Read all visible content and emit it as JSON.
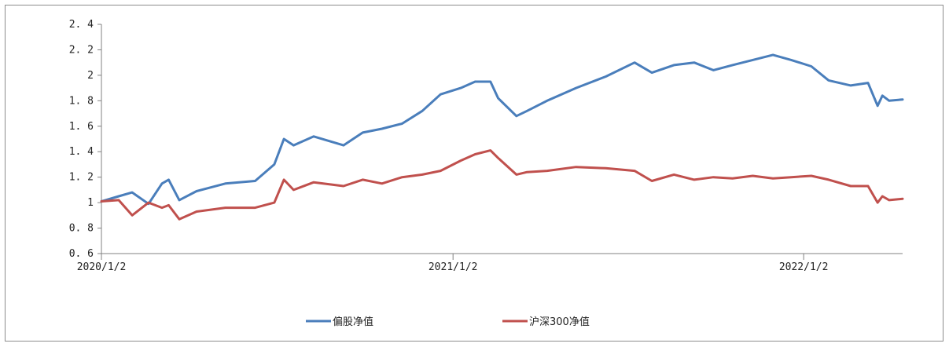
{
  "chart_data": {
    "type": "line",
    "title": "",
    "xlabel": "",
    "ylabel": "",
    "ylim": [
      0.6,
      2.4
    ],
    "yticks": [
      0.6,
      0.8,
      1,
      1.2,
      1.4,
      1.6,
      1.8,
      2,
      2.2,
      2.4
    ],
    "ytick_labels": [
      "0. 6",
      "0. 8",
      "1",
      "1. 2",
      "1. 4",
      "1. 6",
      "1. 8",
      "2",
      "2. 2",
      "2. 4"
    ],
    "xlim": [
      "2020/1/2",
      "2022/4/15"
    ],
    "xticks": [
      "2020/1/2",
      "2021/1/2",
      "2022/1/2"
    ],
    "grid": false,
    "legend": "bottom-center",
    "series": [
      {
        "name": "偏股净值",
        "color": "#4a7ebb",
        "x": [
          "2020/1/2",
          "2020/1/20",
          "2020/2/3",
          "2020/2/20",
          "2020/3/5",
          "2020/3/12",
          "2020/3/23",
          "2020/4/10",
          "2020/5/10",
          "2020/6/10",
          "2020/6/30",
          "2020/7/10",
          "2020/7/20",
          "2020/8/10",
          "2020/9/10",
          "2020/9/30",
          "2020/10/20",
          "2020/11/10",
          "2020/12/1",
          "2020/12/20",
          "2021/1/10",
          "2021/1/25",
          "2021/2/10",
          "2021/2/18",
          "2021/3/9",
          "2021/3/20",
          "2021/4/10",
          "2021/5/10",
          "2021/6/10",
          "2021/7/10",
          "2021/7/28",
          "2021/8/20",
          "2021/9/10",
          "2021/9/30",
          "2021/10/20",
          "2021/11/10",
          "2021/12/1",
          "2021/12/20",
          "2022/1/10",
          "2022/1/28",
          "2022/2/20",
          "2022/3/10",
          "2022/3/20",
          "2022/3/25",
          "2022/4/1",
          "2022/4/15"
        ],
        "y": [
          1.01,
          1.05,
          1.08,
          0.99,
          1.15,
          1.18,
          1.02,
          1.09,
          1.15,
          1.17,
          1.3,
          1.5,
          1.45,
          1.52,
          1.45,
          1.55,
          1.58,
          1.62,
          1.72,
          1.85,
          1.9,
          1.95,
          1.95,
          1.82,
          1.68,
          1.72,
          1.8,
          1.9,
          1.99,
          2.1,
          2.02,
          2.08,
          2.1,
          2.04,
          2.08,
          2.12,
          2.16,
          2.12,
          2.07,
          1.96,
          1.92,
          1.94,
          1.76,
          1.84,
          1.8,
          1.81
        ]
      },
      {
        "name": "沪深300净值",
        "color": "#c0504d",
        "x": [
          "2020/1/2",
          "2020/1/20",
          "2020/2/3",
          "2020/2/20",
          "2020/3/5",
          "2020/3/12",
          "2020/3/23",
          "2020/4/10",
          "2020/5/10",
          "2020/6/10",
          "2020/6/30",
          "2020/7/10",
          "2020/7/20",
          "2020/8/10",
          "2020/9/10",
          "2020/9/30",
          "2020/10/20",
          "2020/11/10",
          "2020/12/1",
          "2020/12/20",
          "2021/1/10",
          "2021/1/25",
          "2021/2/10",
          "2021/2/18",
          "2021/3/9",
          "2021/3/20",
          "2021/4/10",
          "2021/5/10",
          "2021/6/10",
          "2021/7/10",
          "2021/7/28",
          "2021/8/20",
          "2021/9/10",
          "2021/9/30",
          "2021/10/20",
          "2021/11/10",
          "2021/12/1",
          "2021/12/20",
          "2022/1/10",
          "2022/1/28",
          "2022/2/20",
          "2022/3/10",
          "2022/3/20",
          "2022/3/25",
          "2022/4/1",
          "2022/4/15"
        ],
        "y": [
          1.01,
          1.02,
          0.9,
          1.0,
          0.96,
          0.98,
          0.87,
          0.93,
          0.96,
          0.96,
          1.0,
          1.18,
          1.1,
          1.16,
          1.13,
          1.18,
          1.15,
          1.2,
          1.22,
          1.25,
          1.33,
          1.38,
          1.41,
          1.35,
          1.22,
          1.24,
          1.25,
          1.28,
          1.27,
          1.25,
          1.17,
          1.22,
          1.18,
          1.2,
          1.19,
          1.21,
          1.19,
          1.2,
          1.21,
          1.18,
          1.13,
          1.13,
          1.0,
          1.05,
          1.02,
          1.03
        ]
      }
    ]
  }
}
